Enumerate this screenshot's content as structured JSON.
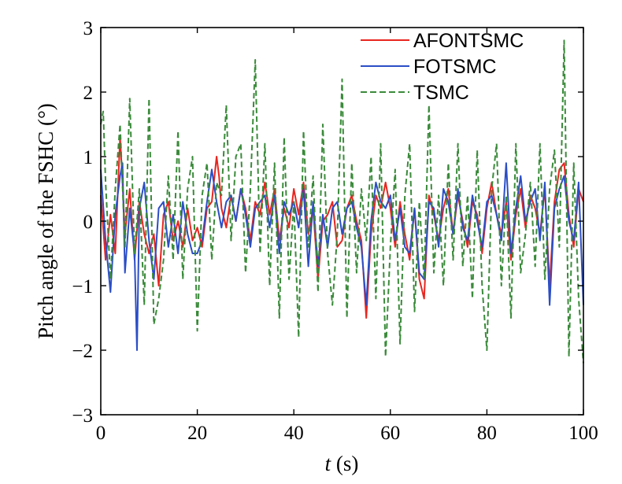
{
  "chart_data": {
    "type": "line",
    "title": "",
    "ylabel": "Pitch angle of the FSHC (°)",
    "xlabel_italic": "t",
    "xlabel_unit": " (s)",
    "xlim": [
      0,
      100
    ],
    "ylim": [
      -3,
      3
    ],
    "xticks": [
      0,
      20,
      40,
      60,
      80,
      100
    ],
    "yticks": [
      3,
      2,
      1,
      0,
      -1,
      -2,
      -3
    ],
    "ytick_labels": [
      "3",
      "2",
      "1",
      "0",
      "−1",
      "−2",
      "−3"
    ],
    "grid": false,
    "legend": "top-right",
    "series": [
      {
        "name": "AFONTSMC",
        "color": "#e8251f",
        "dash": "solid",
        "x": [
          0,
          1,
          2,
          3,
          4,
          4.5,
          5,
          6,
          7,
          8,
          9,
          10,
          11,
          12,
          13,
          14,
          15,
          16,
          17,
          18,
          19,
          20,
          21,
          22,
          23,
          24,
          24.5,
          25,
          26,
          27,
          28,
          29,
          30,
          31,
          32,
          33,
          34,
          35,
          36,
          37,
          38,
          39,
          40,
          41,
          42,
          43,
          44,
          45,
          46,
          47,
          48,
          49,
          50,
          51,
          52,
          53,
          54,
          55,
          56,
          57,
          58,
          59,
          60,
          61,
          62,
          63,
          64,
          65,
          66,
          67,
          68,
          69,
          70,
          71,
          72,
          73,
          74,
          75,
          76,
          77,
          78,
          79,
          80,
          81,
          82,
          83,
          84,
          85,
          86,
          87,
          88,
          89,
          90,
          91,
          92,
          93,
          94,
          95,
          96,
          97,
          98,
          99,
          100
        ],
        "y": [
          0.4,
          -0.6,
          0.1,
          -0.5,
          1.3,
          0.6,
          -0.2,
          0.5,
          -0.6,
          0.3,
          -0.2,
          -0.5,
          -0.2,
          -1.0,
          0.1,
          0.3,
          -0.3,
          0.0,
          -0.4,
          0.2,
          -0.3,
          -0.1,
          -0.4,
          0.2,
          0.3,
          1.0,
          0.7,
          0.2,
          -0.1,
          0.4,
          0.0,
          0.5,
          0.2,
          -0.3,
          0.3,
          0.1,
          0.6,
          0.1,
          0.5,
          -0.3,
          0.2,
          -0.1,
          0.5,
          0.1,
          0.6,
          -0.2,
          0.2,
          -0.9,
          0.0,
          0.1,
          0.3,
          -0.4,
          -0.3,
          0.2,
          0.4,
          0.0,
          -0.3,
          -1.5,
          -0.2,
          0.4,
          0.2,
          0.6,
          0.2,
          -0.4,
          0.3,
          -0.2,
          -0.6,
          0.2,
          -0.9,
          -1.2,
          0.4,
          0.1,
          -0.3,
          0.2,
          0.5,
          -0.2,
          0.4,
          0.0,
          -0.4,
          0.3,
          0.1,
          -0.5,
          0.2,
          0.6,
          0.1,
          -0.2,
          0.3,
          -0.6,
          0.1,
          0.5,
          -0.1,
          0.4,
          0.2,
          -0.2,
          0.5,
          -1.0,
          0.3,
          0.8,
          0.9,
          0.1,
          -0.4,
          0.5,
          0.3
        ]
      },
      {
        "name": "FOTSMC",
        "color": "#2b4ec6",
        "dash": "solid",
        "x": [
          0,
          1,
          2,
          3,
          4,
          4.5,
          5,
          6,
          7,
          7.5,
          8,
          9,
          10,
          11,
          12,
          13,
          14,
          15,
          16,
          17,
          18,
          19,
          20,
          21,
          22,
          23,
          24,
          25,
          26,
          27,
          28,
          29,
          30,
          31,
          32,
          33,
          34,
          35,
          36,
          37,
          38,
          39,
          40,
          41,
          42,
          43,
          44,
          45,
          46,
          47,
          48,
          49,
          50,
          51,
          52,
          53,
          54,
          55,
          56,
          57,
          58,
          59,
          60,
          61,
          62,
          63,
          64,
          65,
          66,
          67,
          68,
          69,
          70,
          71,
          72,
          73,
          74,
          75,
          76,
          77,
          78,
          79,
          80,
          81,
          82,
          83,
          84,
          85,
          86,
          87,
          88,
          89,
          90,
          91,
          92,
          93,
          94,
          95,
          96,
          97,
          98,
          99,
          100
        ],
        "y": [
          0.8,
          -0.3,
          -1.1,
          0.1,
          0.7,
          0.9,
          -0.8,
          0.2,
          -0.5,
          -2.0,
          0.2,
          0.6,
          -0.3,
          -0.9,
          0.2,
          0.3,
          -0.4,
          0.1,
          -0.5,
          0.3,
          -0.2,
          -0.5,
          -0.5,
          -0.3,
          0.3,
          0.8,
          0.3,
          -0.1,
          0.3,
          0.4,
          0.0,
          0.5,
          0.1,
          -0.4,
          0.2,
          0.3,
          0.4,
          -0.1,
          0.4,
          -0.5,
          0.3,
          0.1,
          0.3,
          -0.1,
          0.5,
          -0.7,
          0.3,
          -0.7,
          0.1,
          -0.4,
          0.2,
          0.3,
          -0.2,
          0.2,
          0.3,
          -0.1,
          -0.4,
          -1.3,
          0.0,
          0.6,
          0.3,
          0.2,
          0.4,
          -0.3,
          0.2,
          -0.4,
          -0.5,
          0.2,
          -0.8,
          -0.9,
          0.3,
          0.2,
          -0.4,
          0.5,
          0.3,
          -0.2,
          0.5,
          -0.1,
          -0.3,
          0.4,
          0.0,
          -0.4,
          0.3,
          0.4,
          0.1,
          -0.3,
          0.9,
          -0.5,
          0.2,
          0.7,
          0.0,
          0.3,
          0.5,
          -0.3,
          0.6,
          -1.3,
          0.2,
          0.5,
          0.7,
          0.0,
          -0.3,
          0.6,
          -1.3
        ]
      },
      {
        "name": "TSMC",
        "color": "#3a8a3a",
        "dash": "dashed",
        "x": [
          0,
          0.5,
          1,
          2,
          3,
          4,
          5,
          6,
          7,
          8,
          9,
          10,
          11,
          12,
          13,
          14,
          15,
          16,
          17,
          18,
          19,
          20,
          21,
          22,
          23,
          24,
          25,
          26,
          27,
          28,
          29,
          30,
          31,
          32,
          33,
          34,
          35,
          36,
          37,
          38,
          39,
          40,
          41,
          42,
          43,
          44,
          45,
          46,
          47,
          48,
          49,
          50,
          51,
          52,
          53,
          54,
          55,
          56,
          57,
          58,
          59,
          60,
          61,
          62,
          63,
          64,
          65,
          66,
          67,
          68,
          69,
          70,
          71,
          72,
          73,
          74,
          75,
          76,
          77,
          78,
          79,
          80,
          81,
          82,
          83,
          84,
          85,
          86,
          87,
          88,
          89,
          90,
          91,
          92,
          93,
          94,
          95,
          96,
          97,
          98,
          99,
          100
        ],
        "y": [
          1.5,
          1.7,
          0.6,
          -0.9,
          0.5,
          1.5,
          -0.4,
          1.9,
          -0.5,
          0.5,
          -1.3,
          1.9,
          -1.6,
          -1.2,
          -0.6,
          0.7,
          -0.6,
          1.4,
          -0.9,
          0.5,
          1.0,
          -1.7,
          0.4,
          0.9,
          -0.6,
          0.6,
          0.4,
          1.8,
          -0.3,
          1.0,
          1.2,
          -0.8,
          0.5,
          2.5,
          -0.5,
          1.2,
          -1.0,
          0.9,
          -1.5,
          1.3,
          -0.9,
          0.3,
          -1.8,
          1.4,
          -0.4,
          0.7,
          -1.1,
          1.5,
          -0.5,
          -1.3,
          -0.2,
          2.2,
          -1.5,
          0.9,
          -0.8,
          0.5,
          -0.3,
          1.0,
          -1.2,
          1.2,
          -2.1,
          -0.4,
          0.8,
          -1.9,
          0.4,
          1.2,
          -1.4,
          0.3,
          -0.9,
          1.8,
          -0.8,
          0.4,
          -1.0,
          0.9,
          -0.6,
          1.2,
          -0.7,
          0.4,
          -1.2,
          1.1,
          -1.0,
          -2.0,
          0.5,
          1.2,
          -1.0,
          0.4,
          -1.5,
          1.2,
          -0.8,
          -0.2,
          0.6,
          -0.7,
          1.2,
          -0.9,
          0.5,
          1.1,
          -0.4,
          2.8,
          -2.1,
          0.9,
          -1.2,
          -2.2
        ]
      }
    ]
  }
}
